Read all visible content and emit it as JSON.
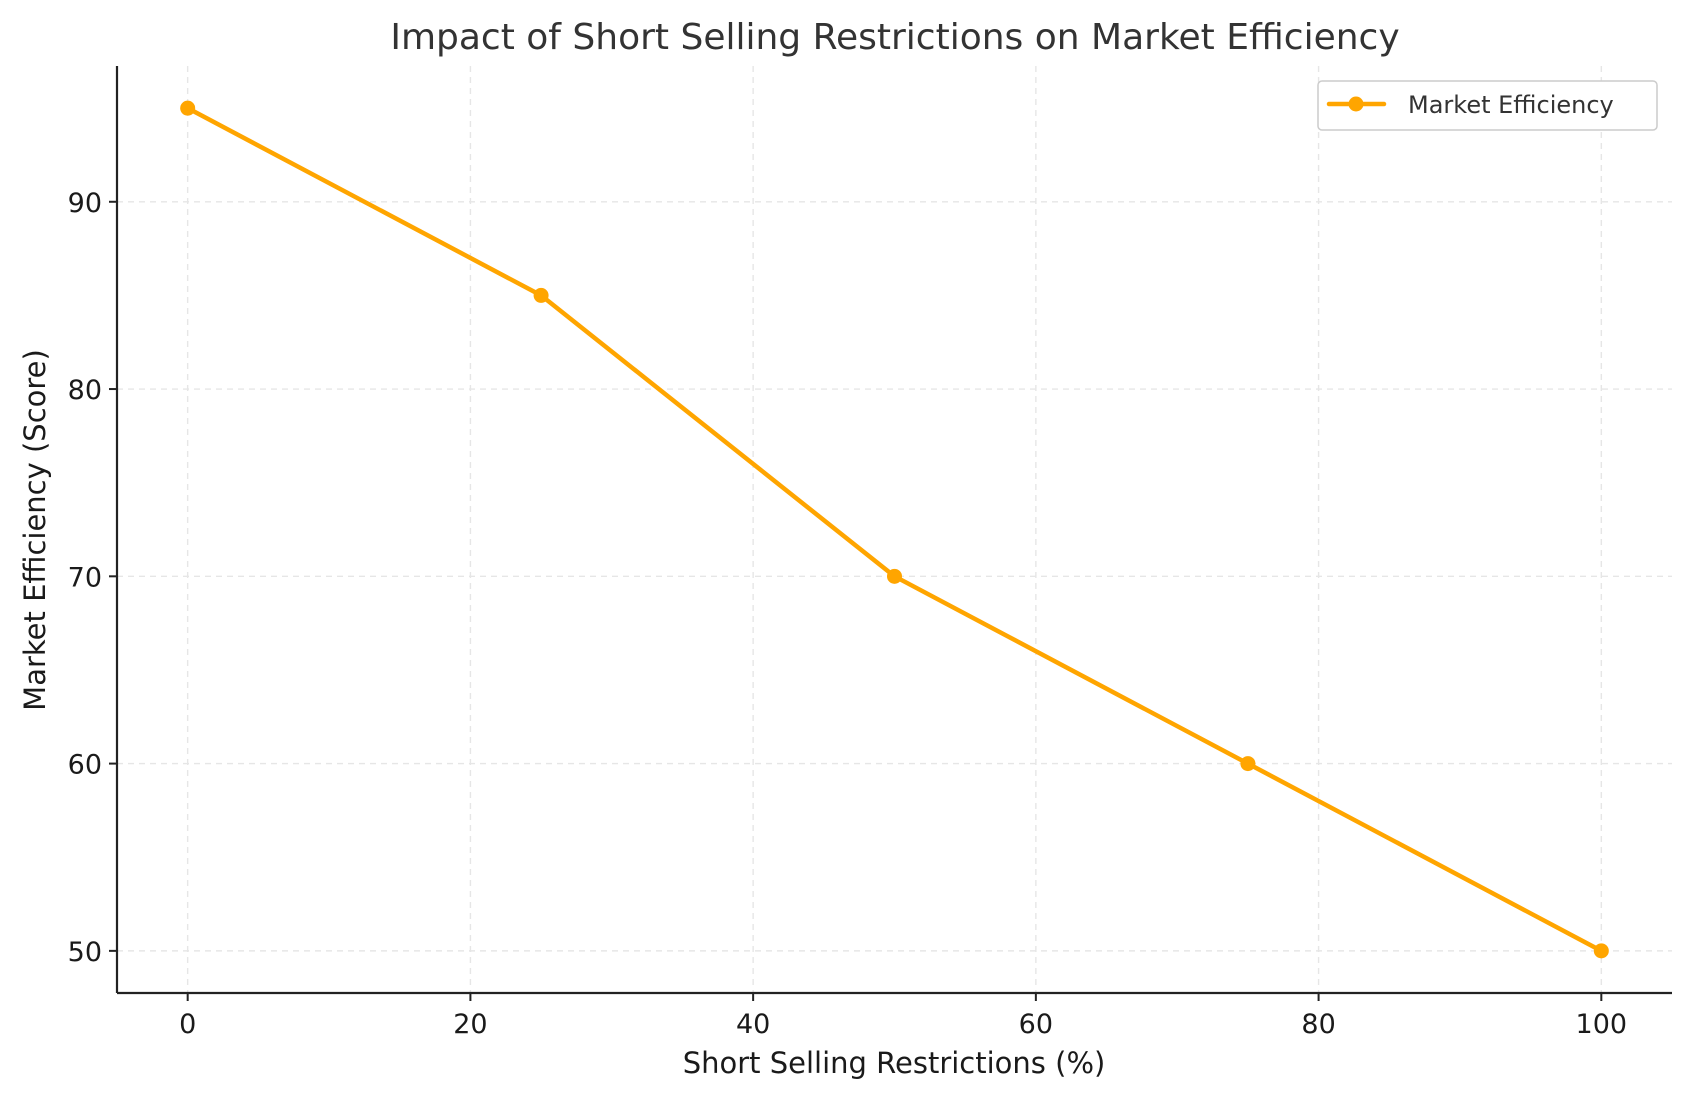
{
  "chart_data": {
    "type": "line",
    "title": "Impact of Short Selling Restrictions on Market Efficiency",
    "xlabel": "Short Selling Restrictions (%)",
    "ylabel": "Market Efficiency (Score)",
    "x": [
      0,
      25,
      50,
      75,
      100
    ],
    "series": [
      {
        "name": "Market Efficiency",
        "values": [
          95,
          85,
          70,
          60,
          50
        ],
        "color": "#FFA500",
        "marker": "circle"
      }
    ],
    "xlim": [
      -5,
      105
    ],
    "ylim": [
      47.75,
      97.25
    ],
    "xticks": [
      0,
      20,
      40,
      60,
      80,
      100
    ],
    "yticks": [
      50,
      60,
      70,
      80,
      90
    ],
    "grid": true,
    "legend_position": "top-right"
  }
}
